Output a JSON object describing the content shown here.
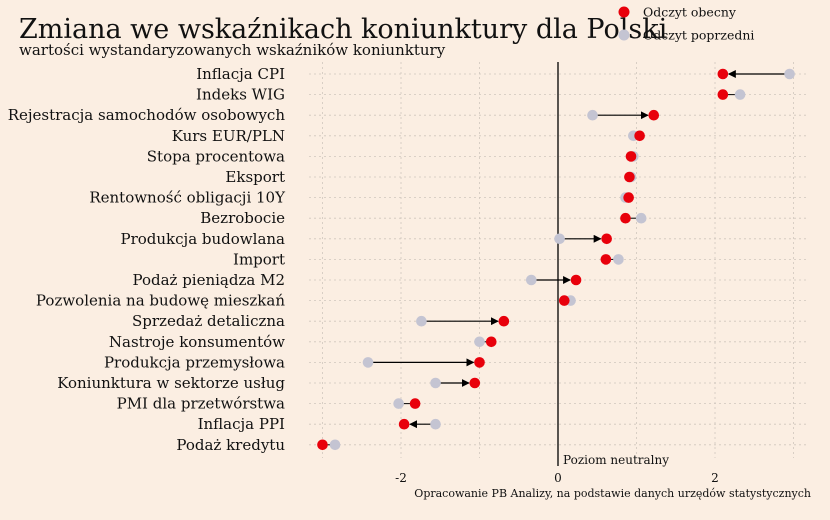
{
  "chart_data": {
    "type": "dumbbell",
    "title": "Zmiana we wskaźnikach koniunktury dla Polski",
    "subtitle": "wartości wystandaryzowanych wskaźników koniunktury",
    "source": "Opracowanie PB Analizy, na podstawie danych urzędów statystycznych",
    "neutral_label": "Poziom neutralny",
    "legend": [
      {
        "name": "Odczyt obecny",
        "color": "#e8000b"
      },
      {
        "name": "Odczyt poprzedni",
        "color": "#c4c4d2"
      }
    ],
    "xlim": [
      -3.2,
      3.2
    ],
    "xticks": [
      -2,
      0,
      2
    ],
    "xtick_labels": [
      "-2",
      "0",
      "2"
    ],
    "grid": true,
    "categories": [
      "Inflacja CPI",
      "Indeks WIG",
      "Rejestracja samochodów osobowych",
      "Kurs EUR/PLN",
      "Stopa procentowa",
      "Eksport",
      "Rentowność obligacji 10Y",
      "Bezrobocie",
      "Produkcja budowlana",
      "Import",
      "Podaż pieniądza M2",
      "Pozwolenia na budowę mieszkań",
      "Sprzedaż detaliczna",
      "Nastroje konsumentów",
      "Produkcja przemysłowa",
      "Koniunktura w sektorze usług",
      "PMI dla przetwórstwa",
      "Inflacja PPI",
      "Podaż kredytu"
    ],
    "series": [
      {
        "name": "Odczyt obecny",
        "values": [
          2.1,
          2.1,
          1.22,
          1.04,
          0.93,
          0.91,
          0.9,
          0.86,
          0.62,
          0.61,
          0.23,
          0.08,
          -0.69,
          -0.85,
          -1.0,
          -1.06,
          -1.82,
          -1.96,
          -3.0
        ]
      },
      {
        "name": "Odczyt poprzedni",
        "values": [
          2.95,
          2.32,
          0.44,
          0.96,
          0.96,
          0.93,
          0.86,
          1.06,
          0.02,
          0.77,
          -0.34,
          0.16,
          -1.74,
          -1.0,
          -2.42,
          -1.56,
          -2.03,
          -1.56,
          -2.84
        ]
      }
    ],
    "arrows": [
      true,
      false,
      true,
      false,
      false,
      false,
      false,
      false,
      true,
      false,
      true,
      false,
      true,
      false,
      true,
      true,
      false,
      true,
      false
    ]
  }
}
